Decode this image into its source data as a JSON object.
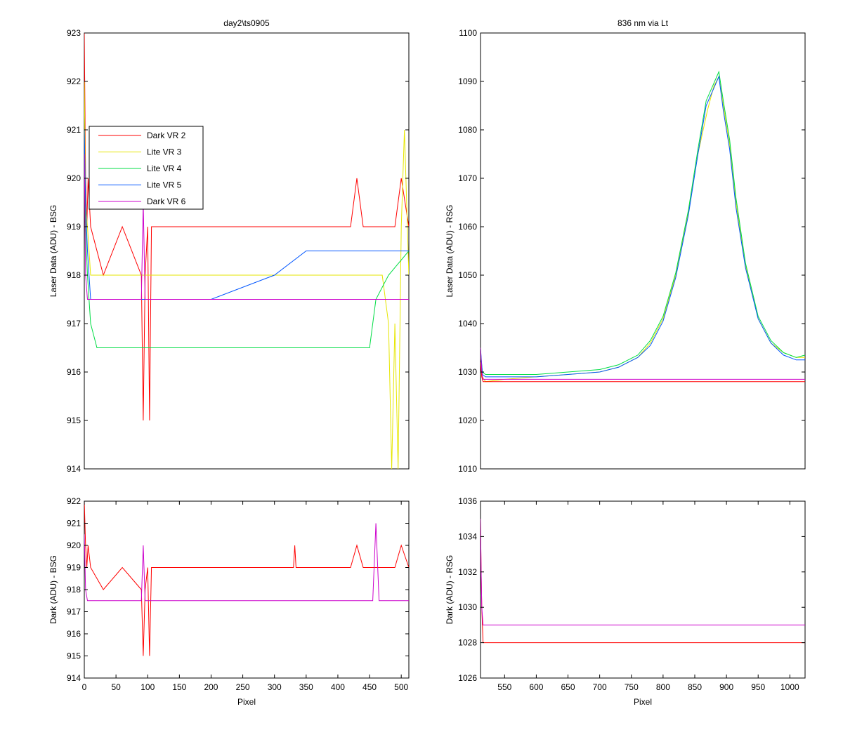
{
  "colors": {
    "Dark VR 2": "#ff0000",
    "Lite VR 3": "#e6e600",
    "Lite VR 4": "#00dd44",
    "Lite VR 5": "#0055ff",
    "Dark VR 6": "#cc00cc"
  },
  "chart_data": [
    {
      "id": "left_top",
      "type": "line",
      "title": "day2\\ts0905",
      "xlabel": "",
      "ylabel": "Laser Data (ADU) - BSG",
      "xlim": [
        0,
        512
      ],
      "ylim": [
        914,
        923
      ],
      "xticks": [],
      "yticks": [
        914,
        915,
        916,
        917,
        918,
        919,
        920,
        921,
        922,
        923
      ],
      "grid": false,
      "legend": {
        "position": "upper-left",
        "entries": [
          "Dark VR 2",
          "Lite VR 3",
          "Lite VR 4",
          "Lite VR 5",
          "Dark VR 6"
        ]
      },
      "series": [
        {
          "name": "Dark VR 2",
          "x": [
            0,
            2,
            4,
            6,
            10,
            30,
            60,
            90,
            93,
            96,
            100,
            103,
            106,
            150,
            300,
            420,
            430,
            440,
            470,
            490,
            500,
            512
          ],
          "y": [
            923,
            920,
            919,
            920,
            919,
            918,
            919,
            918,
            915,
            918,
            919,
            915,
            919,
            919,
            919,
            919,
            920,
            919,
            919,
            919,
            920,
            919
          ]
        },
        {
          "name": "Lite VR 3",
          "x": [
            0,
            2,
            5,
            10,
            50,
            100,
            200,
            300,
            400,
            470,
            480,
            485,
            490,
            495,
            500,
            505,
            512
          ],
          "y": [
            922,
            919.5,
            919,
            918,
            918,
            918,
            918,
            918,
            918,
            918,
            917,
            914,
            917,
            914,
            919,
            921,
            918
          ]
        },
        {
          "name": "Lite VR 4",
          "x": [
            0,
            2,
            5,
            10,
            20,
            60,
            100,
            150,
            200,
            250,
            300,
            350,
            400,
            450,
            460,
            480,
            512
          ],
          "y": [
            921,
            919,
            918,
            917,
            916.5,
            916.5,
            916.5,
            916.5,
            916.5,
            916.5,
            916.5,
            916.5,
            916.5,
            916.5,
            917.5,
            918,
            918.5
          ]
        },
        {
          "name": "Lite VR 5",
          "x": [
            0,
            2,
            5,
            10,
            50,
            100,
            200,
            300,
            350,
            400,
            450,
            500,
            512
          ],
          "y": [
            921,
            919.5,
            918.5,
            917.5,
            917.5,
            917.5,
            917.5,
            918,
            918.5,
            918.5,
            918.5,
            918.5,
            918.5
          ]
        },
        {
          "name": "Dark VR 6",
          "x": [
            0,
            2,
            5,
            10,
            50,
            90,
            93,
            96,
            100,
            200,
            300,
            400,
            460,
            470,
            512
          ],
          "y": [
            920.5,
            918,
            917.5,
            917.5,
            917.5,
            917.5,
            919.5,
            917.5,
            917.5,
            917.5,
            917.5,
            917.5,
            917.5,
            917.5,
            917.5
          ]
        }
      ]
    },
    {
      "id": "left_bottom",
      "type": "line",
      "title": "",
      "xlabel": "Pixel",
      "ylabel": "Dark (ADU) - BSG",
      "xlim": [
        0,
        512
      ],
      "ylim": [
        914,
        922
      ],
      "xticks": [
        0,
        50,
        100,
        150,
        200,
        250,
        300,
        350,
        400,
        450,
        500
      ],
      "yticks": [
        914,
        915,
        916,
        917,
        918,
        919,
        920,
        921,
        922
      ],
      "grid": false,
      "series": [
        {
          "name": "Dark VR 2",
          "x": [
            0,
            2,
            4,
            6,
            10,
            30,
            60,
            90,
            93,
            96,
            100,
            103,
            106,
            150,
            330,
            332,
            334,
            420,
            430,
            440,
            470,
            490,
            500,
            512
          ],
          "y": [
            922,
            920,
            919,
            920,
            919,
            918,
            919,
            918,
            915,
            918,
            919,
            915,
            919,
            919,
            919,
            920,
            919,
            919,
            920,
            919,
            919,
            919,
            920,
            919
          ]
        },
        {
          "name": "Dark VR 6",
          "x": [
            0,
            2,
            5,
            10,
            50,
            90,
            93,
            96,
            100,
            200,
            300,
            400,
            455,
            460,
            465,
            470,
            512
          ],
          "y": [
            920.5,
            918,
            917.5,
            917.5,
            917.5,
            917.5,
            920,
            917.5,
            917.5,
            917.5,
            917.5,
            917.5,
            917.5,
            921,
            917.5,
            917.5,
            917.5
          ]
        }
      ]
    },
    {
      "id": "right_top",
      "type": "line",
      "title": "836 nm via Lt",
      "xlabel": "",
      "ylabel": "Laser Data (ADU) - RSG",
      "xlim": [
        512,
        1024
      ],
      "ylim": [
        1010,
        1100
      ],
      "xticks": [],
      "yticks": [
        1010,
        1020,
        1030,
        1040,
        1050,
        1060,
        1070,
        1080,
        1090,
        1100
      ],
      "grid": false,
      "series": [
        {
          "name": "Lite VR 3",
          "x": [
            512,
            515,
            520,
            550,
            600,
            650,
            700,
            730,
            760,
            780,
            800,
            820,
            840,
            855,
            870,
            880,
            888,
            895,
            905,
            915,
            930,
            950,
            970,
            990,
            1010,
            1024
          ],
          "y": [
            1034,
            1029,
            1028,
            1028.5,
            1029,
            1029.5,
            1030,
            1031,
            1033,
            1036,
            1041,
            1050,
            1063,
            1075,
            1084,
            1089,
            1091,
            1085,
            1077,
            1065,
            1052,
            1041,
            1036,
            1034,
            1033,
            1033
          ]
        },
        {
          "name": "Lite VR 4",
          "x": [
            512,
            515,
            520,
            550,
            600,
            650,
            700,
            730,
            760,
            780,
            800,
            820,
            840,
            855,
            868,
            878,
            888,
            895,
            905,
            915,
            930,
            950,
            970,
            990,
            1010,
            1024
          ],
          "y": [
            1034,
            1030,
            1029.5,
            1029.5,
            1029.5,
            1030,
            1030.5,
            1031.5,
            1033.5,
            1036.5,
            1041.5,
            1050.5,
            1063.5,
            1076,
            1086,
            1089,
            1092,
            1086,
            1078,
            1066,
            1052.5,
            1041.5,
            1036.5,
            1034,
            1033,
            1033.5
          ]
        },
        {
          "name": "Lite VR 5",
          "x": [
            512,
            515,
            520,
            550,
            600,
            650,
            700,
            730,
            760,
            780,
            800,
            820,
            840,
            855,
            868,
            878,
            888,
            895,
            905,
            915,
            930,
            950,
            970,
            990,
            1010,
            1024
          ],
          "y": [
            1035,
            1029.5,
            1029,
            1029,
            1029,
            1029.5,
            1030,
            1031,
            1033,
            1035.5,
            1040.5,
            1049.5,
            1062.5,
            1075,
            1085,
            1088,
            1091,
            1084,
            1076,
            1064,
            1051.5,
            1041,
            1036,
            1033.5,
            1032.5,
            1032.5
          ]
        },
        {
          "name": "Dark VR 2",
          "x": [
            512,
            514,
            516,
            520,
            600,
            700,
            800,
            900,
            1024
          ],
          "y": [
            1032,
            1029,
            1028,
            1028,
            1028,
            1028,
            1028,
            1028,
            1028
          ]
        },
        {
          "name": "Dark VR 6",
          "x": [
            512,
            514,
            516,
            520,
            600,
            700,
            800,
            900,
            1024
          ],
          "y": [
            1035,
            1030,
            1028.5,
            1028.5,
            1028.5,
            1028.5,
            1028.5,
            1028.5,
            1028.5
          ]
        }
      ]
    },
    {
      "id": "right_bottom",
      "type": "line",
      "title": "",
      "xlabel": "Pixel",
      "ylabel": "Dark (ADU) - RSG",
      "xlim": [
        512,
        1024
      ],
      "ylim": [
        1026,
        1036
      ],
      "xticks": [
        550,
        600,
        650,
        700,
        750,
        800,
        850,
        900,
        950,
        1000
      ],
      "yticks": [
        1026,
        1028,
        1030,
        1032,
        1034,
        1036
      ],
      "grid": false,
      "series": [
        {
          "name": "Dark VR 2",
          "x": [
            512,
            513,
            514,
            516,
            520,
            600,
            700,
            800,
            900,
            1024
          ],
          "y": [
            1035,
            1032,
            1030,
            1028,
            1028,
            1028,
            1028,
            1028,
            1028,
            1028
          ]
        },
        {
          "name": "Dark VR 6",
          "x": [
            512,
            513,
            514,
            516,
            520,
            600,
            700,
            800,
            900,
            1024
          ],
          "y": [
            1035,
            1032,
            1030,
            1029,
            1029,
            1029,
            1029,
            1029,
            1029,
            1029
          ]
        }
      ]
    }
  ]
}
